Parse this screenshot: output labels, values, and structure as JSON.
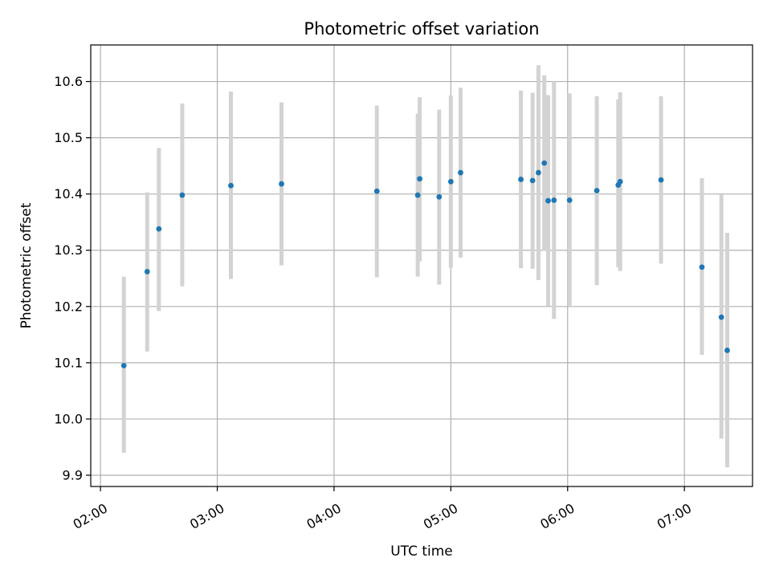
{
  "chart_data": {
    "type": "scatter",
    "title": "Photometric offset variation",
    "xlabel": "UTC time",
    "ylabel": "Photometric offset",
    "xlim_minutes": [
      115,
      455
    ],
    "ylim": [
      9.88,
      10.665
    ],
    "grid": true,
    "x_ticks": [
      {
        "label": "02:00",
        "value": 120
      },
      {
        "label": "03:00",
        "value": 180
      },
      {
        "label": "04:00",
        "value": 240
      },
      {
        "label": "05:00",
        "value": 300
      },
      {
        "label": "06:00",
        "value": 360
      },
      {
        "label": "07:00",
        "value": 420
      }
    ],
    "y_ticks": [
      {
        "label": "9.9",
        "value": 9.9
      },
      {
        "label": "10.0",
        "value": 10.0
      },
      {
        "label": "10.1",
        "value": 10.1
      },
      {
        "label": "10.2",
        "value": 10.2
      },
      {
        "label": "10.3",
        "value": 10.3
      },
      {
        "label": "10.4",
        "value": 10.4
      },
      {
        "label": "10.5",
        "value": 10.5
      },
      {
        "label": "10.6",
        "value": 10.6
      }
    ],
    "colors": {
      "point": "#1f77b4",
      "errorbar": "#d3d3d3",
      "grid": "#b0b0b0"
    },
    "points": [
      {
        "t": "02:12",
        "y": 10.095,
        "lo": 9.94,
        "hi": 10.253
      },
      {
        "t": "02:24",
        "y": 10.262,
        "lo": 10.12,
        "hi": 10.403
      },
      {
        "t": "02:30",
        "y": 10.338,
        "lo": 10.192,
        "hi": 10.482
      },
      {
        "t": "02:42",
        "y": 10.398,
        "lo": 10.236,
        "hi": 10.561
      },
      {
        "t": "03:07",
        "y": 10.415,
        "lo": 10.249,
        "hi": 10.582
      },
      {
        "t": "03:33",
        "y": 10.418,
        "lo": 10.273,
        "hi": 10.563
      },
      {
        "t": "04:22",
        "y": 10.405,
        "lo": 10.252,
        "hi": 10.557
      },
      {
        "t": "04:43",
        "y": 10.398,
        "lo": 10.253,
        "hi": 10.543
      },
      {
        "t": "04:44",
        "y": 10.427,
        "lo": 10.28,
        "hi": 10.572
      },
      {
        "t": "04:54",
        "y": 10.395,
        "lo": 10.239,
        "hi": 10.55
      },
      {
        "t": "05:00",
        "y": 10.422,
        "lo": 10.269,
        "hi": 10.575
      },
      {
        "t": "05:05",
        "y": 10.438,
        "lo": 10.287,
        "hi": 10.589
      },
      {
        "t": "05:36",
        "y": 10.426,
        "lo": 10.268,
        "hi": 10.584
      },
      {
        "t": "05:42",
        "y": 10.424,
        "lo": 10.267,
        "hi": 10.58
      },
      {
        "t": "05:45",
        "y": 10.438,
        "lo": 10.247,
        "hi": 10.629
      },
      {
        "t": "05:48",
        "y": 10.455,
        "lo": 10.299,
        "hi": 10.611
      },
      {
        "t": "05:50",
        "y": 10.388,
        "lo": 10.201,
        "hi": 10.576
      },
      {
        "t": "05:53",
        "y": 10.389,
        "lo": 10.178,
        "hi": 10.6
      },
      {
        "t": "06:01",
        "y": 10.389,
        "lo": 10.2,
        "hi": 10.579
      },
      {
        "t": "06:15",
        "y": 10.406,
        "lo": 10.238,
        "hi": 10.574
      },
      {
        "t": "06:26",
        "y": 10.416,
        "lo": 10.27,
        "hi": 10.568
      },
      {
        "t": "06:27",
        "y": 10.422,
        "lo": 10.263,
        "hi": 10.581
      },
      {
        "t": "06:48",
        "y": 10.425,
        "lo": 10.276,
        "hi": 10.574
      },
      {
        "t": "07:09",
        "y": 10.27,
        "lo": 10.114,
        "hi": 10.428
      },
      {
        "t": "07:19",
        "y": 10.181,
        "lo": 9.965,
        "hi": 10.399
      },
      {
        "t": "07:22",
        "y": 10.122,
        "lo": 9.914,
        "hi": 10.331
      }
    ]
  }
}
